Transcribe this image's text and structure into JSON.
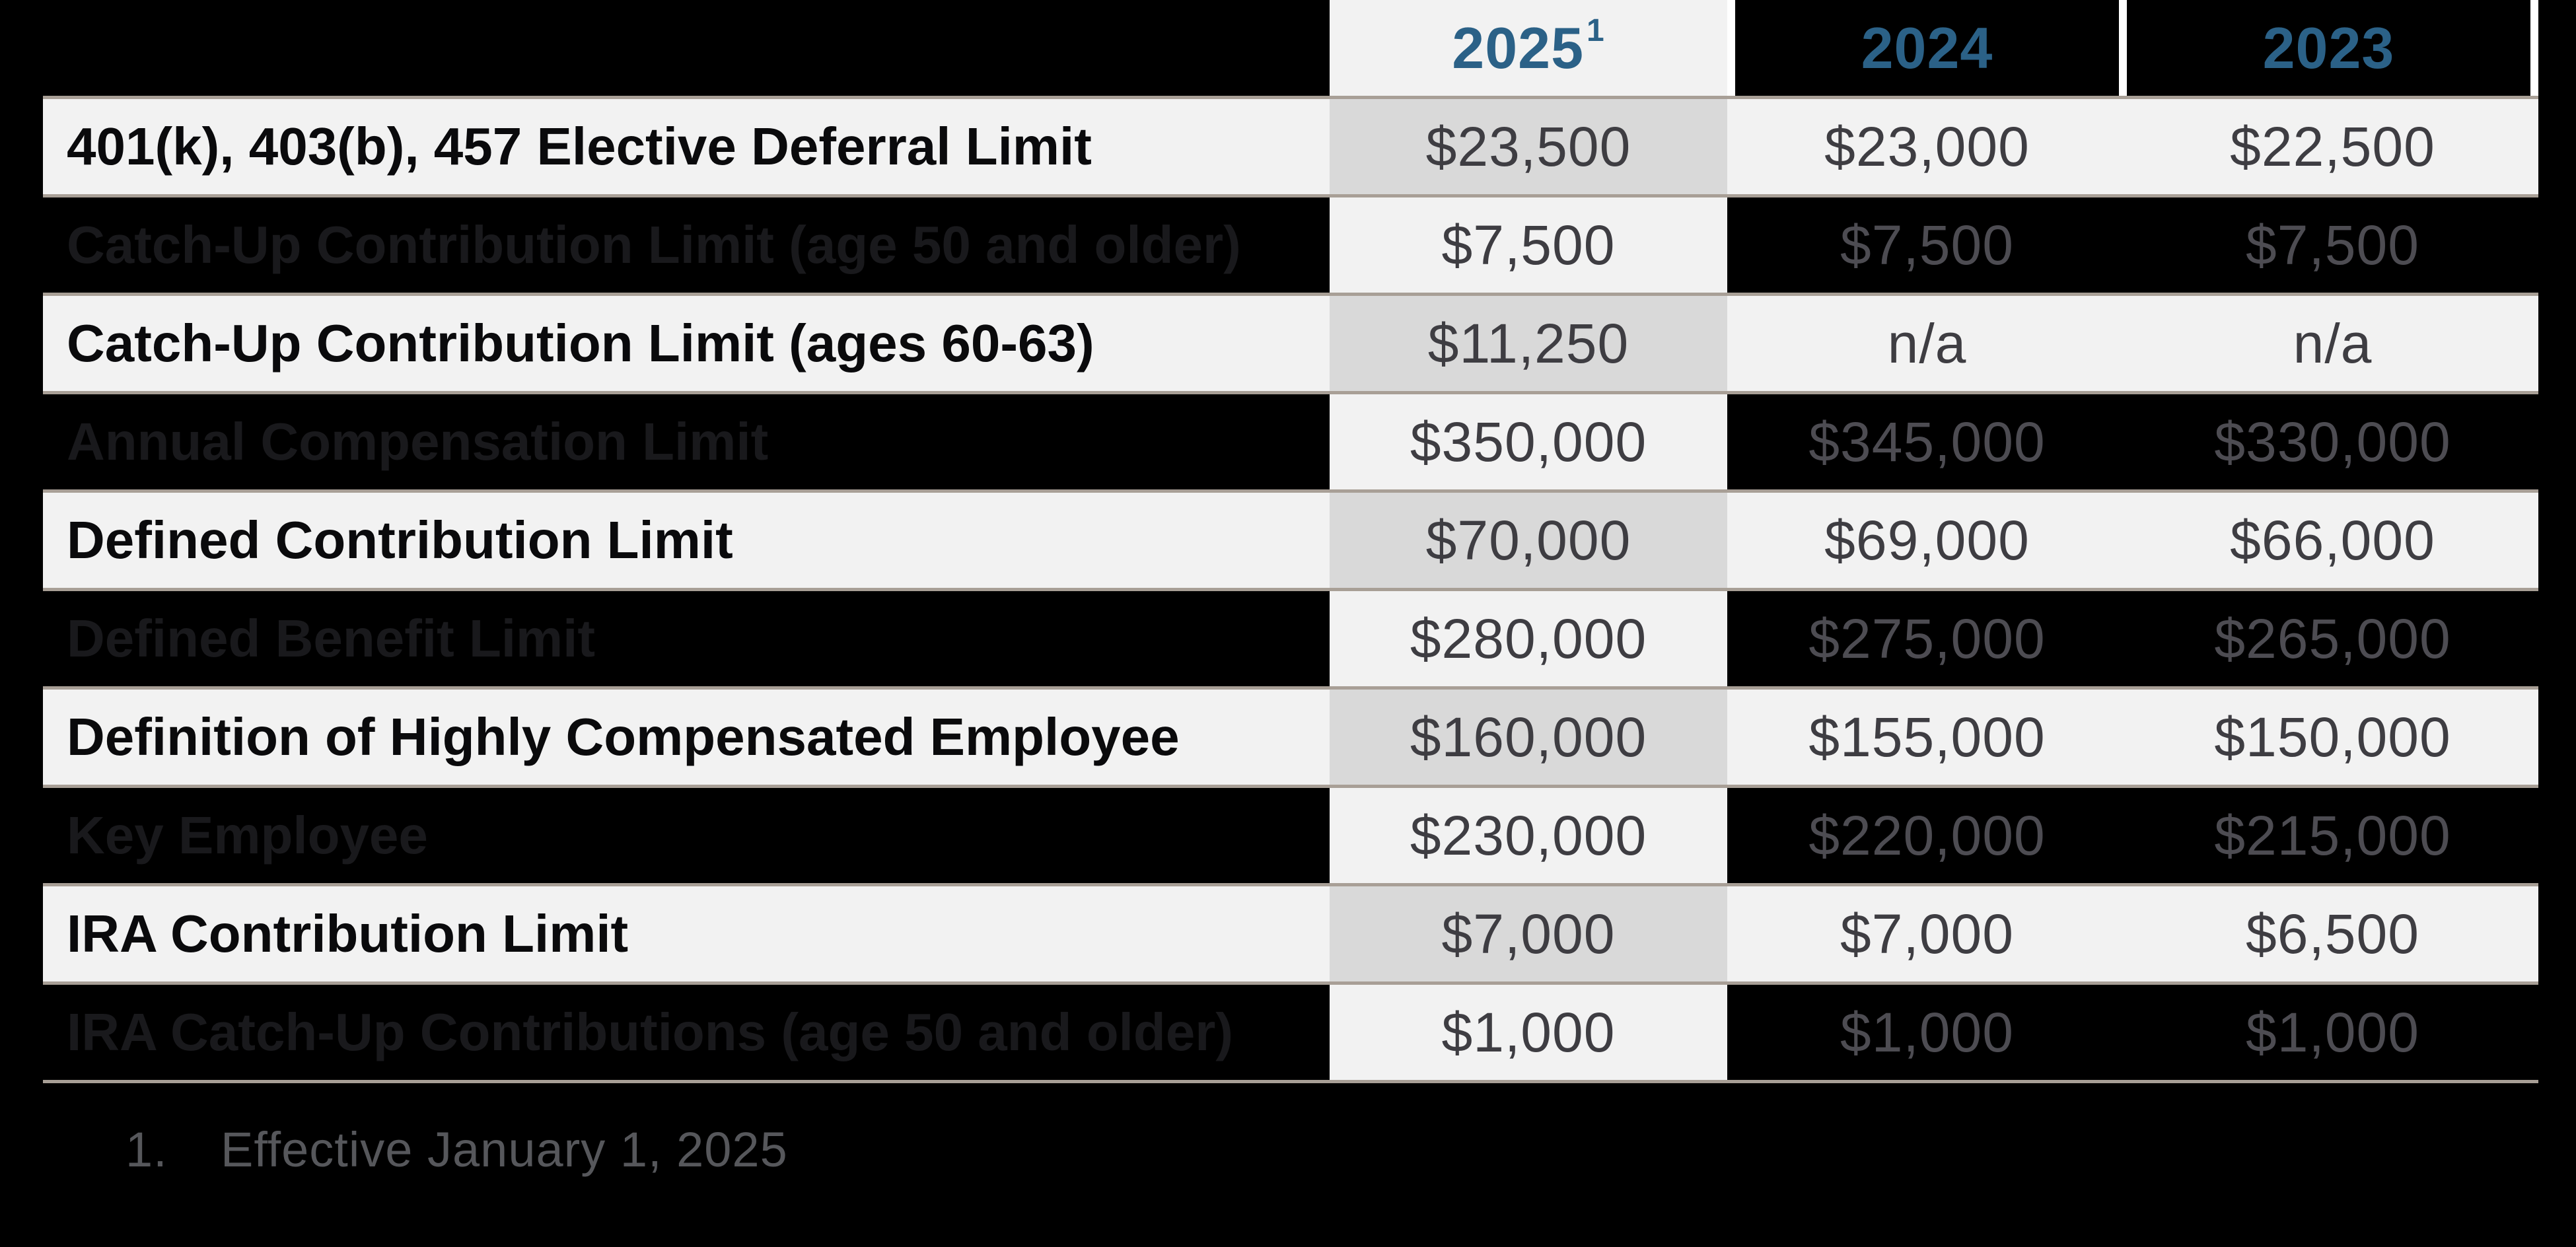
{
  "page": {
    "background": "#000000"
  },
  "colors": {
    "page_bg": "#000000",
    "accent_blue": "#2B6187",
    "row_light_bg": "#F2F2F2",
    "highlight_2025": "#D9D9D9",
    "separator_tan": "#A89F96",
    "divider_white": "#FFFFFF",
    "value_gray": "#3E3D42",
    "value_gray_dark_row": "#4D4C52",
    "label_light": "#0A0A0C",
    "label_dark": "#19191C",
    "footnote_gray": "#56575B"
  },
  "table": {
    "header": {
      "y2025": "2025",
      "y2025_superscript": "1",
      "y2024": "2024",
      "y2023": "2023"
    },
    "rows": [
      {
        "label": "401(k), 403(b), 457 Elective Deferral Limit",
        "y2025": "$23,500",
        "y2024": "$23,000",
        "y2023": "$22,500",
        "shade": "light"
      },
      {
        "label": "Catch-Up Contribution Limit (age 50 and older)",
        "y2025": "$7,500",
        "y2024": "$7,500",
        "y2023": "$7,500",
        "shade": "dark"
      },
      {
        "label": "Catch-Up Contribution Limit (ages 60-63)",
        "y2025": "$11,250",
        "y2024": "n/a",
        "y2023": "n/a",
        "shade": "light"
      },
      {
        "label": "Annual Compensation Limit",
        "y2025": "$350,000",
        "y2024": "$345,000",
        "y2023": "$330,000",
        "shade": "dark"
      },
      {
        "label": "Defined Contribution Limit",
        "y2025": "$70,000",
        "y2024": "$69,000",
        "y2023": "$66,000",
        "shade": "light"
      },
      {
        "label": "Defined Benefit Limit",
        "y2025": "$280,000",
        "y2024": "$275,000",
        "y2023": "$265,000",
        "shade": "dark"
      },
      {
        "label": "Definition of Highly Compensated Employee",
        "y2025": "$160,000",
        "y2024": "$155,000",
        "y2023": "$150,000",
        "shade": "light"
      },
      {
        "label": "Key Employee",
        "y2025": "$230,000",
        "y2024": "$220,000",
        "y2023": "$215,000",
        "shade": "dark"
      },
      {
        "label": "IRA Contribution Limit",
        "y2025": "$7,000",
        "y2024": "$7,000",
        "y2023": "$6,500",
        "shade": "light"
      },
      {
        "label": "IRA Catch-Up Contributions (age 50 and older)",
        "y2025": "$1,000",
        "y2024": "$1,000",
        "y2023": "$1,000",
        "shade": "dark"
      }
    ]
  },
  "footnote": {
    "number": "1.",
    "text": "Effective January 1, 2025"
  }
}
